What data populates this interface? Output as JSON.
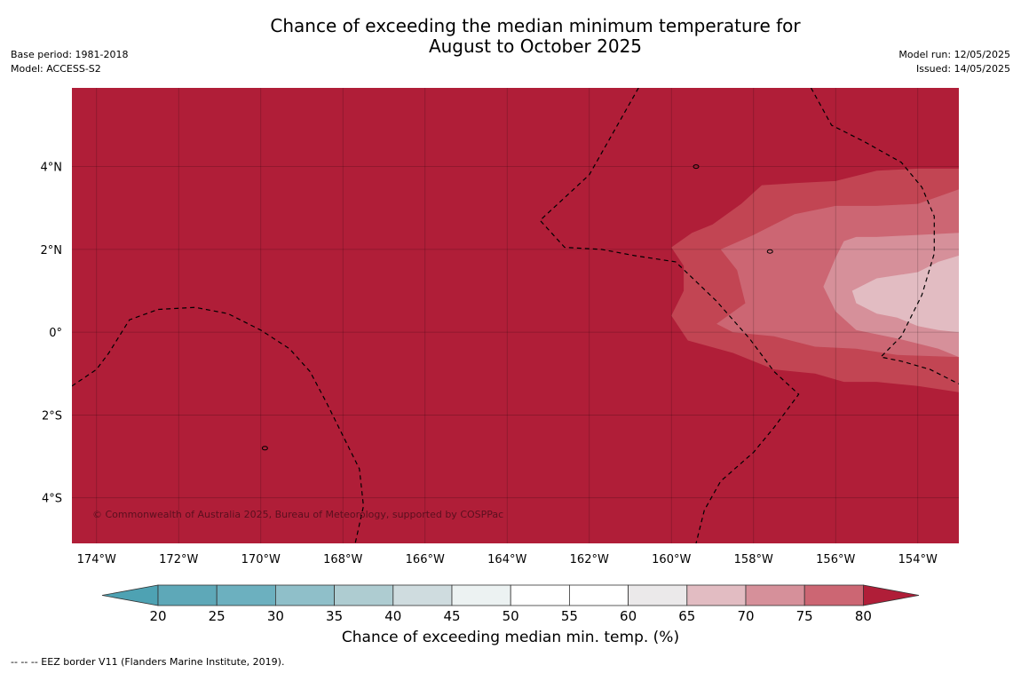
{
  "title": {
    "line1": "Chance of exceeding the median minimum temperature for",
    "line2": "August to October 2025"
  },
  "meta_left": {
    "base_period": "Base period: 1981-2018",
    "model": "Model: ACCESS-S2"
  },
  "meta_right": {
    "model_run": "Model run: 12/05/2025",
    "issued": "Issued: 14/05/2025"
  },
  "map": {
    "lon_range": [
      -174.6,
      -153
    ],
    "lat_range": [
      -5.1,
      5.9
    ],
    "lon_ticks": [
      {
        "value": -174,
        "label": "174°W"
      },
      {
        "value": -172,
        "label": "172°W"
      },
      {
        "value": -170,
        "label": "170°W"
      },
      {
        "value": -168,
        "label": "168°W"
      },
      {
        "value": -166,
        "label": "166°W"
      },
      {
        "value": -164,
        "label": "164°W"
      },
      {
        "value": -162,
        "label": "162°W"
      },
      {
        "value": -160,
        "label": "160°W"
      },
      {
        "value": -158,
        "label": "158°W"
      },
      {
        "value": -156,
        "label": "156°W"
      },
      {
        "value": -154,
        "label": "154°W"
      }
    ],
    "lat_ticks": [
      {
        "value": 4,
        "label": "4°N"
      },
      {
        "value": 2,
        "label": "2°N"
      },
      {
        "value": 0,
        "label": "0°"
      },
      {
        "value": -2,
        "label": "2°S"
      },
      {
        "value": -4,
        "label": "4°S"
      }
    ],
    "copyright": "© Commonwealth of Australia 2025, Bureau of Meteorology, supported by COSPPac",
    "background_color": "#b01e38",
    "contours": [
      {
        "level": 75,
        "color": "#c24553",
        "points": [
          [
            -153,
            3.95
          ],
          [
            -154,
            3.95
          ],
          [
            -155,
            3.9
          ],
          [
            -156,
            3.65
          ],
          [
            -157,
            3.6
          ],
          [
            -157.8,
            3.55
          ],
          [
            -158.3,
            3.1
          ],
          [
            -159,
            2.6
          ],
          [
            -159.5,
            2.4
          ],
          [
            -160,
            2.05
          ],
          [
            -159.7,
            1.6
          ],
          [
            -159.7,
            1.0
          ],
          [
            -160,
            0.4
          ],
          [
            -159.6,
            -0.2
          ],
          [
            -158.5,
            -0.5
          ],
          [
            -157.5,
            -0.9
          ],
          [
            -156.5,
            -1.0
          ],
          [
            -155.8,
            -1.2
          ],
          [
            -155,
            -1.2
          ],
          [
            -154,
            -1.3
          ],
          [
            -153,
            -1.45
          ]
        ]
      },
      {
        "level": 70,
        "color": "#cc6673",
        "points": [
          [
            -153,
            3.45
          ],
          [
            -154,
            3.1
          ],
          [
            -155,
            3.05
          ],
          [
            -156,
            3.05
          ],
          [
            -157,
            2.85
          ],
          [
            -158,
            2.35
          ],
          [
            -158.8,
            2.0
          ],
          [
            -158.4,
            1.5
          ],
          [
            -158.2,
            0.7
          ],
          [
            -158.9,
            0.2
          ],
          [
            -158.5,
            0.0
          ],
          [
            -157.5,
            -0.1
          ],
          [
            -156.5,
            -0.35
          ],
          [
            -155.5,
            -0.4
          ],
          [
            -154.5,
            -0.55
          ],
          [
            -153,
            -0.6
          ]
        ]
      },
      {
        "level": 65,
        "color": "#d6909a",
        "points": [
          [
            -153,
            2.4
          ],
          [
            -154,
            2.35
          ],
          [
            -155,
            2.3
          ],
          [
            -155.5,
            2.3
          ],
          [
            -155.8,
            2.2
          ],
          [
            -156,
            1.8
          ],
          [
            -156.3,
            1.1
          ],
          [
            -156,
            0.5
          ],
          [
            -155.5,
            0.05
          ],
          [
            -154.5,
            -0.15
          ],
          [
            -153.5,
            -0.4
          ],
          [
            -153,
            -0.6
          ]
        ]
      },
      {
        "level": 60,
        "color": "#e2bcc2",
        "points": [
          [
            -153,
            1.85
          ],
          [
            -153.5,
            1.7
          ],
          [
            -154,
            1.45
          ],
          [
            -155,
            1.3
          ],
          [
            -155.6,
            1.0
          ],
          [
            -155.5,
            0.7
          ],
          [
            -155,
            0.45
          ],
          [
            -154.5,
            0.35
          ],
          [
            -154,
            0.15
          ],
          [
            -153.5,
            0.05
          ],
          [
            -153,
            0.0
          ]
        ]
      }
    ],
    "eez_lines": [
      [
        [
          -174.6,
          -1.3
        ],
        [
          -174,
          -0.9
        ],
        [
          -173.7,
          -0.5
        ],
        [
          -173.2,
          0.3
        ],
        [
          -172.5,
          0.55
        ],
        [
          -171.6,
          0.6
        ],
        [
          -170.8,
          0.45
        ],
        [
          -170,
          0.05
        ],
        [
          -169.3,
          -0.4
        ],
        [
          -168.8,
          -0.95
        ],
        [
          -168.4,
          -1.7
        ],
        [
          -168,
          -2.5
        ],
        [
          -167.6,
          -3.3
        ],
        [
          -167.5,
          -4.2
        ],
        [
          -167.7,
          -5.1
        ]
      ],
      [
        [
          -160.8,
          5.9
        ],
        [
          -162,
          3.8
        ],
        [
          -163.2,
          2.7
        ],
        [
          -162.6,
          2.05
        ],
        [
          -161.7,
          2.0
        ],
        [
          -160.9,
          1.85
        ],
        [
          -159.9,
          1.7
        ],
        [
          -158.9,
          0.75
        ],
        [
          -158.1,
          -0.15
        ],
        [
          -157.5,
          -0.95
        ],
        [
          -156.9,
          -1.5
        ],
        [
          -157.5,
          -2.3
        ],
        [
          -158,
          -2.9
        ],
        [
          -158.8,
          -3.6
        ],
        [
          -159.2,
          -4.3
        ],
        [
          -159.4,
          -5.1
        ]
      ],
      [
        [
          -156.6,
          5.9
        ],
        [
          -156.1,
          5.0
        ],
        [
          -155.3,
          4.6
        ],
        [
          -154.4,
          4.1
        ],
        [
          -153.9,
          3.5
        ],
        [
          -153.6,
          2.8
        ],
        [
          -153.6,
          1.9
        ],
        [
          -153.9,
          0.9
        ],
        [
          -154.4,
          -0.1
        ],
        [
          -154.9,
          -0.6
        ],
        [
          -154.4,
          -0.7
        ],
        [
          -153.7,
          -0.9
        ],
        [
          -153,
          -1.25
        ]
      ]
    ]
  },
  "colorbar": {
    "title": "Chance of exceeding median min. temp. (%)",
    "ticks": [
      "20",
      "25",
      "30",
      "35",
      "40",
      "45",
      "50",
      "55",
      "60",
      "65",
      "70",
      "75",
      "80"
    ],
    "colors": [
      "#5ea8b8",
      "#6cb0bf",
      "#8fbfc9",
      "#aeccd1",
      "#cfdcdf",
      "#ecf2f2",
      "#ffffff",
      "#ffffff",
      "#ebe9ea",
      "#e2bcc2",
      "#d6909a",
      "#cc6673",
      "#c24553",
      "#b01e38"
    ],
    "under_color": "#4ea2b3",
    "over_color": "#b01e38"
  },
  "footer": "--  --  -- EEZ border V11 (Flanders Marine Institute, 2019)."
}
